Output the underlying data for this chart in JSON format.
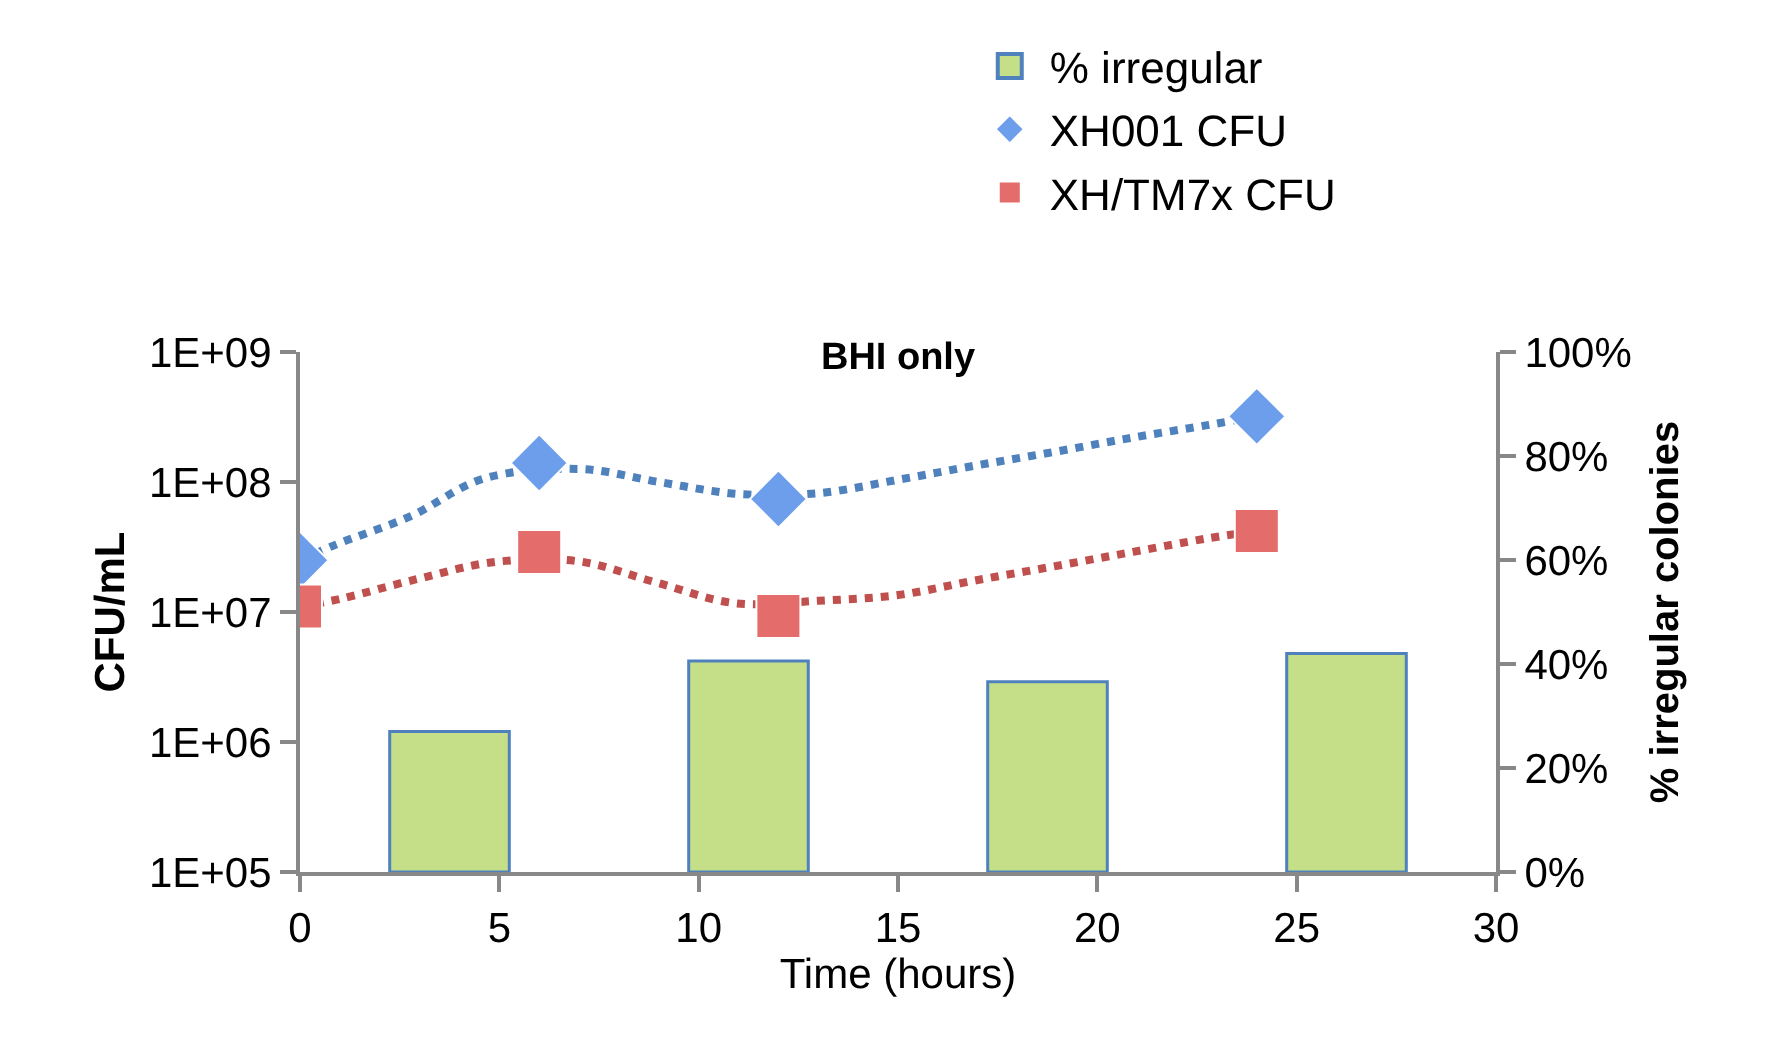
{
  "chart_data": {
    "type": "scatter",
    "title": "BHI only",
    "xlabel": "Time (hours)",
    "ylabel": "CFU/mL",
    "y2label": "% irregular colonies",
    "xlim": [
      0,
      30
    ],
    "xticks": [
      0,
      5,
      10,
      15,
      20,
      25,
      30
    ],
    "ylim": [
      100000,
      1000000000
    ],
    "yticks": [
      {
        "value": 100000,
        "label": "1E+05"
      },
      {
        "value": 1000000,
        "label": "1E+06"
      },
      {
        "value": 10000000,
        "label": "1E+07"
      },
      {
        "value": 100000000,
        "label": "1E+08"
      },
      {
        "value": 1000000000,
        "label": "1E+09"
      }
    ],
    "y2lim": [
      0,
      100
    ],
    "y2ticks": [
      {
        "value": 0,
        "label": "0%"
      },
      {
        "value": 20,
        "label": "20%"
      },
      {
        "value": 40,
        "label": "40%"
      },
      {
        "value": 60,
        "label": "60%"
      },
      {
        "value": 80,
        "label": "80%"
      },
      {
        "value": 100,
        "label": "100%"
      }
    ],
    "log": "y",
    "legend": "top right",
    "series": [
      {
        "name": "% irregular",
        "type": "bar",
        "axis": "y2",
        "color": "#c4df87",
        "x": [
          3.75,
          11.25,
          18.75,
          26.25
        ],
        "values": [
          27,
          40.6,
          36.6,
          42
        ]
      },
      {
        "type": "line",
        "line_style": "dotted",
        "color": "#4f81bd",
        "x": [
          0,
          0.9,
          2.8,
          4.6,
          7,
          9,
          11,
          13,
          15,
          16.9,
          18.9,
          20.9,
          22.8,
          24
        ],
        "values": [
          25000000,
          33000000,
          55000000,
          106000000,
          126000000,
          100000000,
          81000000,
          82000000,
          104000000,
          133000000,
          170000000,
          220000000,
          275000000,
          320000000
        ]
      },
      {
        "type": "line",
        "line_style": "dotted",
        "color": "#c0504d",
        "x": [
          0,
          1,
          2.9,
          4.9,
          7,
          8.9,
          10.9,
          13,
          15,
          16.9,
          18.9,
          20.9,
          22.8,
          24
        ],
        "values": [
          11000000,
          12600000,
          17800000,
          24300000,
          24500000,
          17000000,
          11700000,
          12200000,
          13500000,
          17400000,
          22400000,
          29000000,
          37000000,
          42000000
        ]
      },
      {
        "name": "XH001 CFU",
        "marker": "diamond",
        "color": "#6d9eeb",
        "x": [
          0,
          6,
          12,
          24
        ],
        "values": [
          25000000,
          140000000,
          74000000,
          320000000
        ]
      },
      {
        "name": "XH/TM7x CFU",
        "marker": "square",
        "color": "#e46c6a",
        "x": [
          0,
          6,
          12,
          24
        ],
        "values": [
          11000000,
          29000000,
          9300000,
          42000000
        ]
      }
    ]
  }
}
